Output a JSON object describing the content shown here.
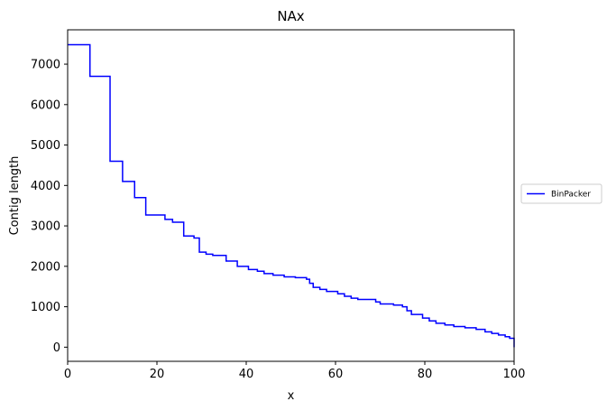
{
  "chart_data": {
    "type": "line",
    "title": "NAx",
    "xlabel": "x",
    "ylabel": "Contig length",
    "xlim": [
      0,
      100
    ],
    "ylim": [
      -350,
      7850
    ],
    "x_ticks": [
      0,
      20,
      40,
      60,
      80,
      100
    ],
    "y_ticks": [
      0,
      1000,
      2000,
      3000,
      4000,
      5000,
      6000,
      7000
    ],
    "grid": false,
    "legend_position": "center-right outside",
    "series": [
      {
        "name": "BinPacker",
        "color": "#0000ff",
        "step": true,
        "points": [
          [
            0,
            7480
          ],
          [
            5,
            6700
          ],
          [
            9.5,
            4600
          ],
          [
            12.3,
            4100
          ],
          [
            15,
            3700
          ],
          [
            17.5,
            3270
          ],
          [
            21.8,
            3160
          ],
          [
            23.5,
            3090
          ],
          [
            26,
            2750
          ],
          [
            28.3,
            2700
          ],
          [
            29.5,
            2350
          ],
          [
            31,
            2300
          ],
          [
            32.5,
            2270
          ],
          [
            35.5,
            2130
          ],
          [
            38,
            2000
          ],
          [
            40.5,
            1920
          ],
          [
            42.5,
            1880
          ],
          [
            44,
            1820
          ],
          [
            46,
            1780
          ],
          [
            48.5,
            1740
          ],
          [
            51,
            1720
          ],
          [
            53.5,
            1680
          ],
          [
            54.2,
            1580
          ],
          [
            55,
            1480
          ],
          [
            56.5,
            1430
          ],
          [
            58,
            1380
          ],
          [
            60.5,
            1320
          ],
          [
            62,
            1260
          ],
          [
            63.5,
            1210
          ],
          [
            65,
            1180
          ],
          [
            69,
            1120
          ],
          [
            70,
            1070
          ],
          [
            73,
            1040
          ],
          [
            75,
            1000
          ],
          [
            76,
            900
          ],
          [
            77,
            810
          ],
          [
            79.5,
            720
          ],
          [
            81,
            650
          ],
          [
            82.5,
            590
          ],
          [
            84.5,
            550
          ],
          [
            86.5,
            510
          ],
          [
            89,
            480
          ],
          [
            91.5,
            440
          ],
          [
            93.5,
            380
          ],
          [
            95,
            340
          ],
          [
            96.5,
            300
          ],
          [
            98,
            260
          ],
          [
            99,
            220
          ],
          [
            100,
            200
          ],
          [
            100,
            0
          ]
        ]
      }
    ]
  }
}
